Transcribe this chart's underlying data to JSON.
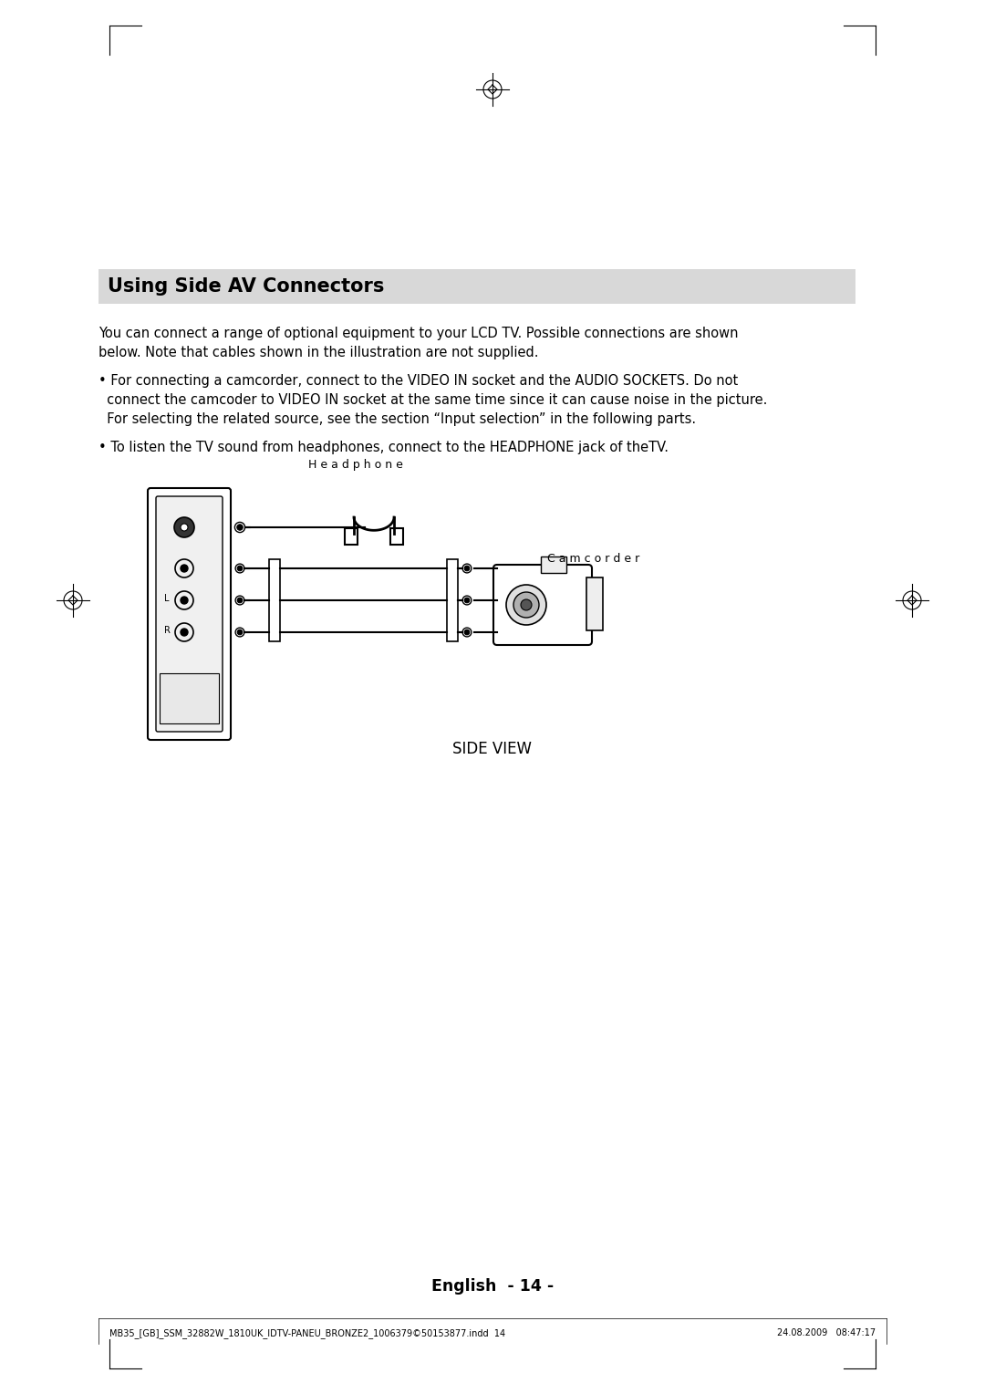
{
  "title_box_text": "Using Side AV Connectors",
  "title_box_color": "#d8d8d8",
  "body_bg": "#ffffff",
  "para1": "You can connect a range of optional equipment to your LCD TV. Possible connections are shown\nbelow. Note that cables shown in the illustration are not supplied.",
  "bullet1": "• For connecting a camcorder, connect to the VIDEO IN socket and the AUDIO SOCKETS. Do not\n  connect the camcoder to VIDEO IN socket at the same time since it can cause noise in the picture.\n  For selecting the related source, see the section “Input selection” in the following parts.",
  "bullet2": "• To listen the TV sound from headphones, connect to the HEADPHONE jack of theTV.",
  "label_headphone": "H e a d p h o n e",
  "label_camcorder": "C a m c o r d e r",
  "label_side_view": "SIDE VIEW",
  "label_english": "English  - 14 -",
  "footer_left": "MB35_[GB]_SSM_32882W_1810UK_IDTV-PANEU_BRONZE2_1006379©50153877.indd  14",
  "footer_right": "24.08.2009   08:47:17",
  "text_color": "#000000",
  "gray_color": "#888888",
  "light_gray": "#cccccc"
}
